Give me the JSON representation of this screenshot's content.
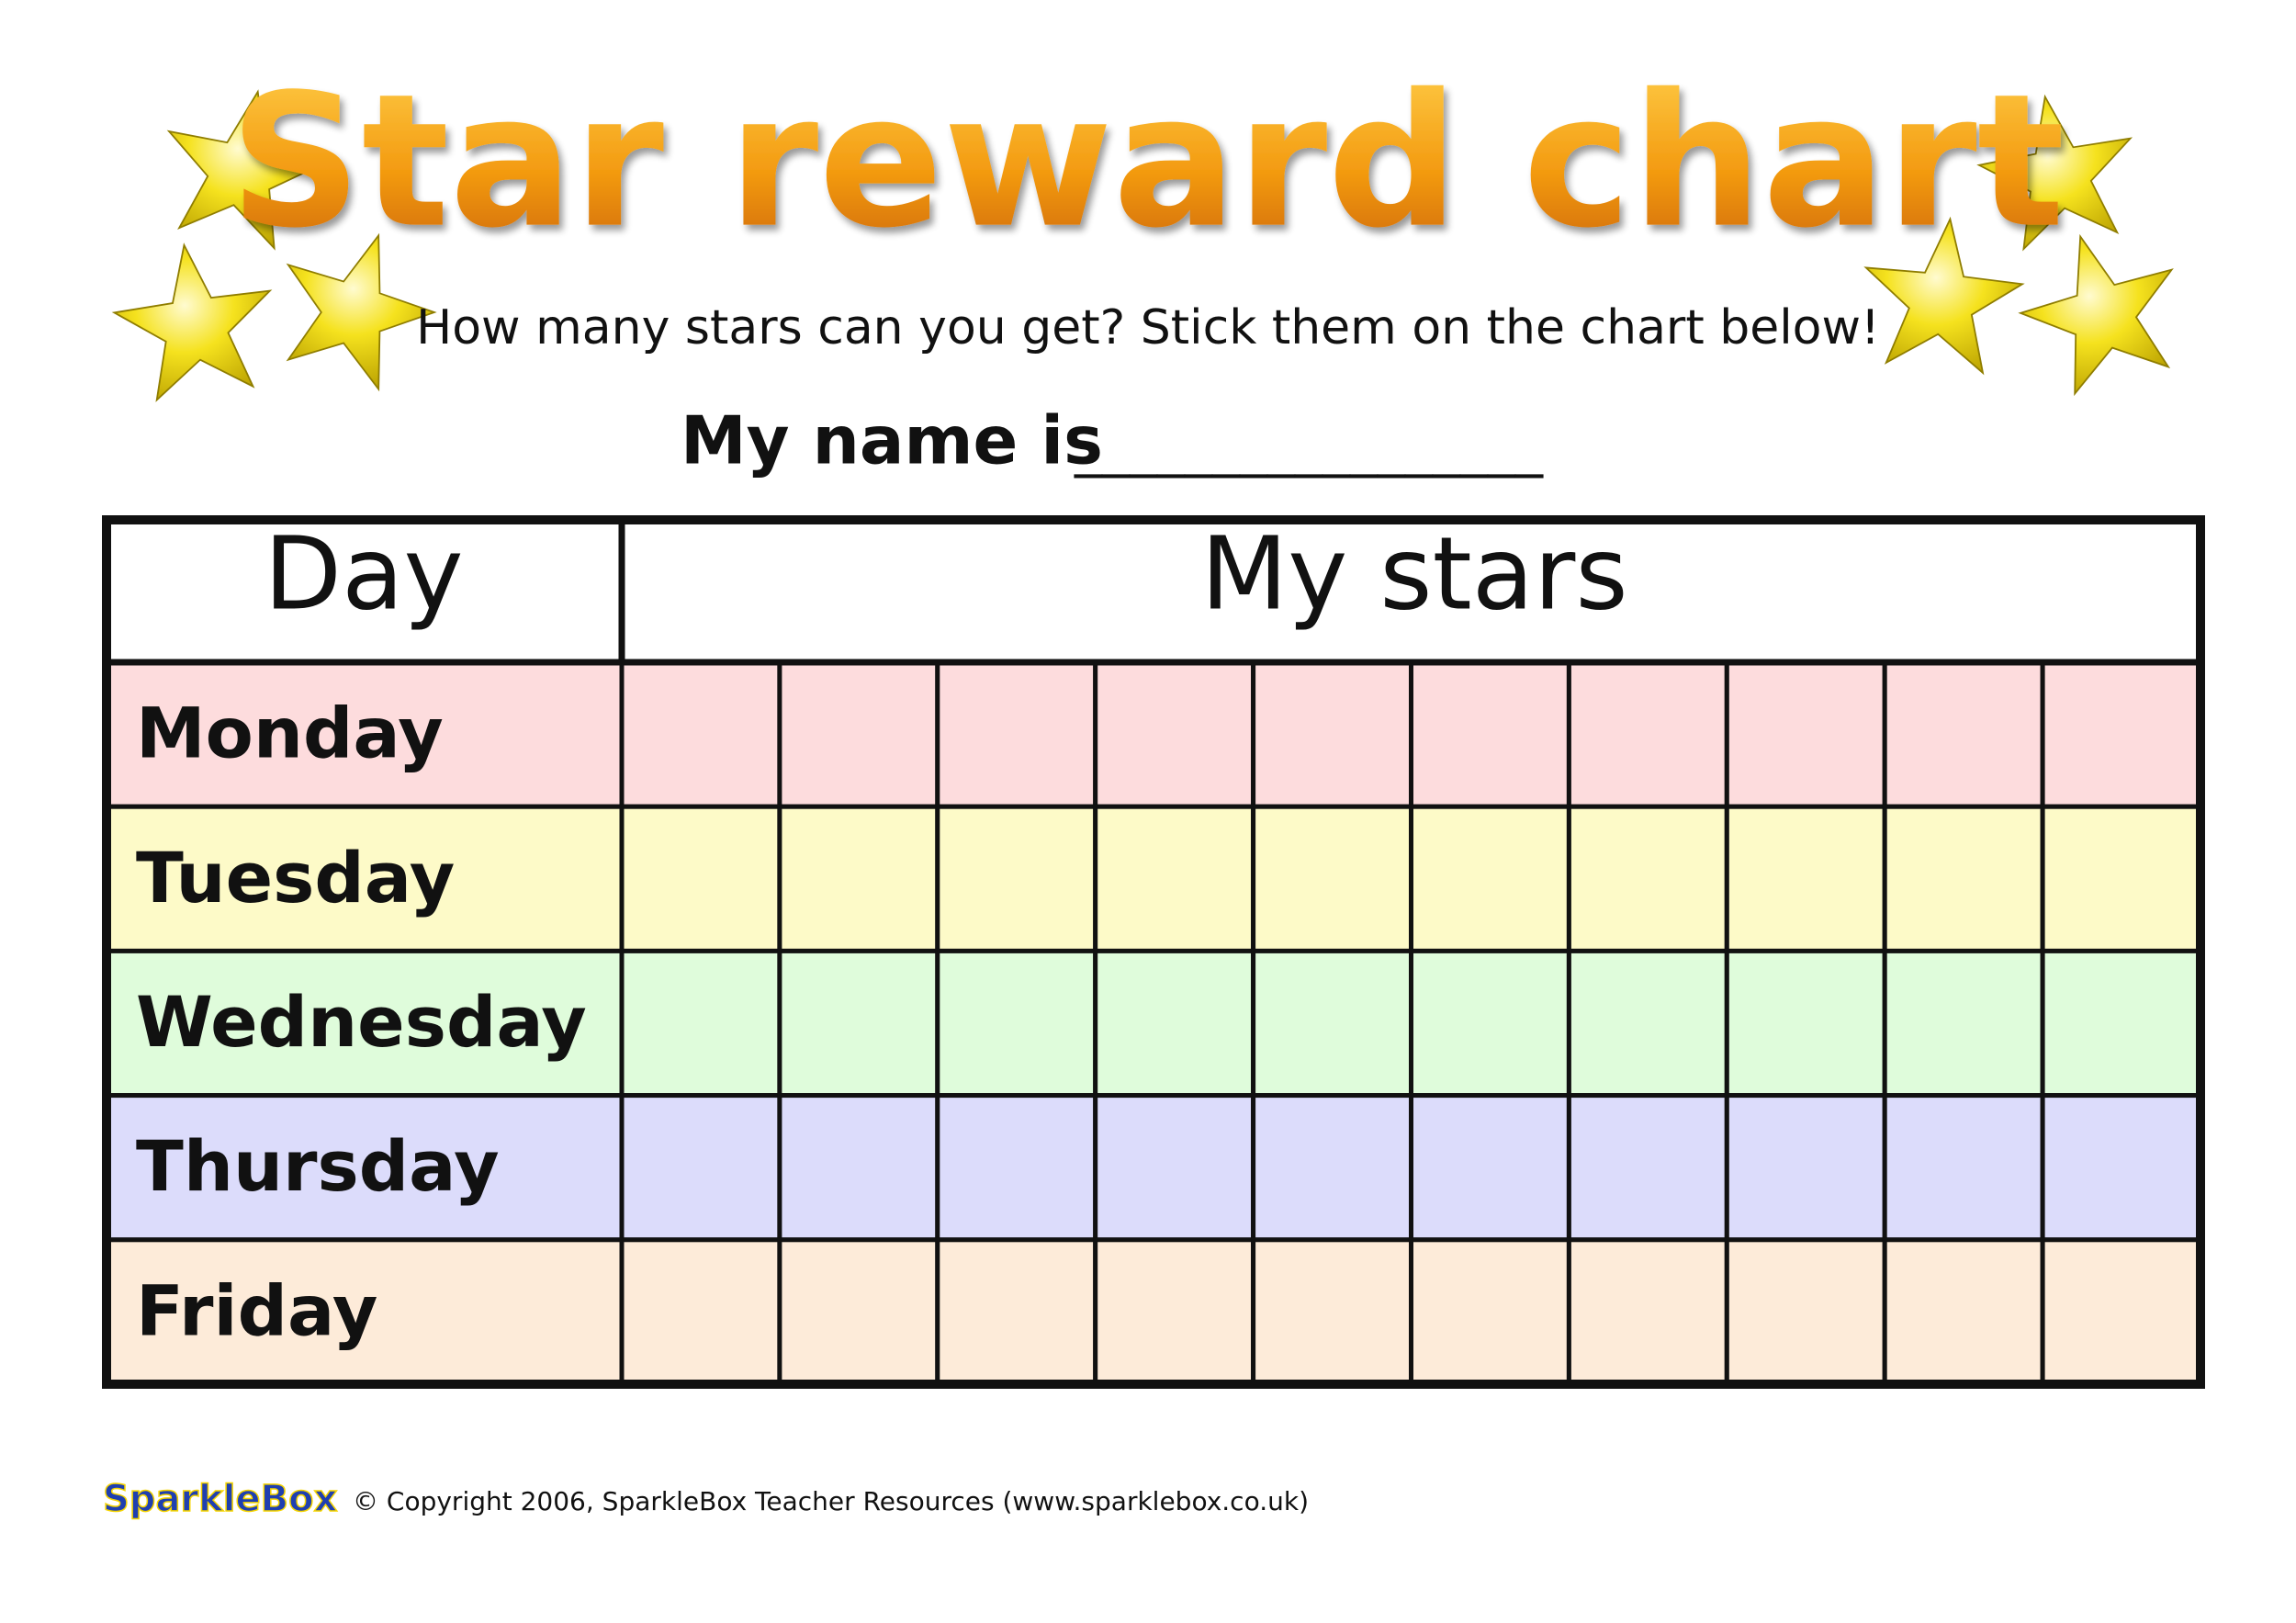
{
  "header": {
    "title": "Star reward chart",
    "subtitle": "How many stars can you get?  Stick them on the chart below!",
    "name_prompt": "My name is",
    "name_blank": "_________________"
  },
  "table": {
    "columns": [
      "Day",
      "My stars"
    ],
    "star_slots": 10,
    "rows": [
      {
        "day": "Monday",
        "color": "#fddcdd"
      },
      {
        "day": "Tuesday",
        "color": "#fdfac8"
      },
      {
        "day": "Wednesday",
        "color": "#dffcdb"
      },
      {
        "day": "Thursday",
        "color": "#dcdcfb"
      },
      {
        "day": "Friday",
        "color": "#fdebd9"
      }
    ]
  },
  "footer": {
    "logo": "SparkleBox",
    "copyright": "© Copyright 2006, SparkleBox Teacher Resources (www.sparklebox.co.uk)"
  }
}
